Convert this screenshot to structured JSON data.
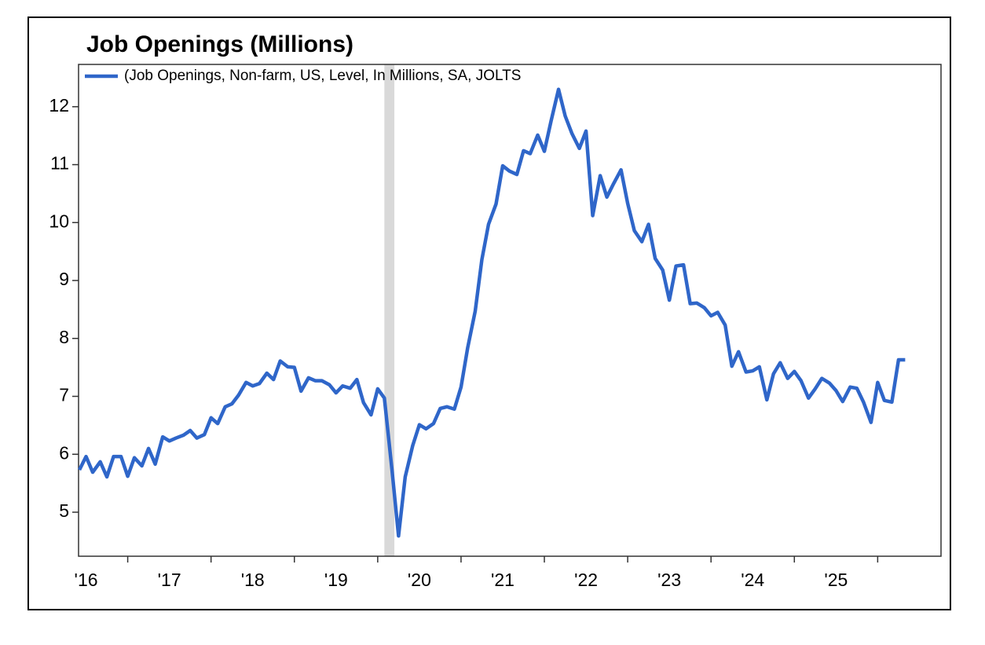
{
  "chart_data": {
    "type": "line",
    "title": "Job Openings (Millions)",
    "series": [
      {
        "name": "(Job Openings, Non-farm, US, Level, In Millions, SA, JOLTS",
        "color": "#2f66c9",
        "x": [
          2016.42,
          2016.5,
          2016.58,
          2016.67,
          2016.75,
          2016.83,
          2016.92,
          2017.0,
          2017.08,
          2017.17,
          2017.25,
          2017.33,
          2017.42,
          2017.5,
          2017.58,
          2017.67,
          2017.75,
          2017.83,
          2017.92,
          2018.0,
          2018.08,
          2018.17,
          2018.25,
          2018.33,
          2018.42,
          2018.5,
          2018.58,
          2018.67,
          2018.75,
          2018.83,
          2018.92,
          2019.0,
          2019.08,
          2019.17,
          2019.25,
          2019.33,
          2019.42,
          2019.5,
          2019.58,
          2019.67,
          2019.75,
          2019.83,
          2019.92,
          2020.0,
          2020.08,
          2020.17,
          2020.25,
          2020.33,
          2020.42,
          2020.5,
          2020.58,
          2020.67,
          2020.75,
          2020.83,
          2020.92,
          2021.0,
          2021.08,
          2021.17,
          2021.25,
          2021.33,
          2021.42,
          2021.5,
          2021.58,
          2021.67,
          2021.75,
          2021.83,
          2021.92,
          2022.0,
          2022.08,
          2022.17,
          2022.25,
          2022.33,
          2022.42,
          2022.5,
          2022.58,
          2022.67,
          2022.75,
          2022.83,
          2022.92,
          2023.0,
          2023.08,
          2023.17,
          2023.25,
          2023.33,
          2023.42,
          2023.5,
          2023.58,
          2023.67,
          2023.75,
          2023.83,
          2023.92,
          2024.0,
          2024.08,
          2024.17,
          2024.25,
          2024.33,
          2024.42,
          2024.5,
          2024.58,
          2024.67,
          2024.75,
          2024.83,
          2024.92,
          2025.0,
          2025.08,
          2025.17,
          2025.25,
          2025.33,
          2025.42,
          2025.5,
          2025.58,
          2025.67,
          2025.75,
          2025.83,
          2025.92,
          2026.0,
          2026.08,
          2026.17,
          2026.25,
          2026.33
        ],
        "values": [
          5.73,
          5.96,
          5.69,
          5.87,
          5.61,
          5.96,
          5.96,
          5.62,
          5.94,
          5.8,
          6.1,
          5.83,
          6.3,
          6.23,
          6.28,
          6.33,
          6.41,
          6.28,
          6.34,
          6.63,
          6.53,
          6.82,
          6.87,
          7.02,
          7.24,
          7.18,
          7.22,
          7.4,
          7.29,
          7.61,
          7.51,
          7.5,
          7.09,
          7.32,
          7.27,
          7.27,
          7.2,
          7.06,
          7.18,
          7.14,
          7.29,
          6.89,
          6.68,
          7.13,
          6.97,
          5.75,
          4.59,
          5.61,
          6.15,
          6.51,
          6.44,
          6.53,
          6.79,
          6.82,
          6.78,
          7.16,
          7.84,
          8.47,
          9.36,
          9.97,
          10.32,
          10.98,
          10.89,
          10.83,
          11.24,
          11.19,
          11.51,
          11.23,
          11.75,
          12.3,
          11.84,
          11.54,
          11.28,
          11.58,
          10.12,
          10.81,
          10.44,
          10.67,
          10.91,
          10.33,
          9.86,
          9.67,
          9.97,
          9.38,
          9.18,
          8.66,
          9.25,
          9.27,
          8.6,
          8.61,
          8.53,
          8.39,
          8.45,
          8.23,
          7.52,
          7.77,
          7.42,
          7.44,
          7.51,
          6.94,
          7.39,
          7.58,
          7.31,
          7.43,
          7.27,
          6.97,
          7.13,
          7.31,
          7.23,
          7.1,
          6.91,
          7.16,
          7.14,
          6.9,
          6.55,
          7.24,
          6.93,
          6.9,
          7.63,
          7.63
        ]
      }
    ],
    "recession": {
      "start": 2020.08,
      "end": 2020.2,
      "color": "#d9d9d9"
    },
    "xlim": [
      2016.41,
      2026.76
    ],
    "xticks": [
      {
        "value": 2016,
        "label": "'16"
      },
      {
        "value": 2017,
        "label": "'17"
      },
      {
        "value": 2018,
        "label": "'18"
      },
      {
        "value": 2019,
        "label": "'19"
      },
      {
        "value": 2020,
        "label": "'20"
      },
      {
        "value": 2021,
        "label": "'21"
      },
      {
        "value": 2022,
        "label": "'22"
      },
      {
        "value": 2023,
        "label": "'23"
      },
      {
        "value": 2024,
        "label": "'24"
      },
      {
        "value": 2025,
        "label": "'25"
      },
      {
        "value": 2026,
        "label": null
      }
    ],
    "ylim": [
      4.24,
      12.73
    ],
    "yticks": [
      5,
      6,
      7,
      8,
      9,
      10,
      11,
      12
    ],
    "legend": "top-left"
  }
}
